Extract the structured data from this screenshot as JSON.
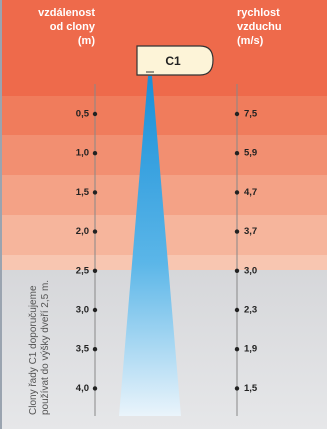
{
  "left_header": [
    "vzdálenost",
    "od clony",
    "(m)"
  ],
  "right_header": [
    "rychlost",
    "vzduchu",
    "(m/s)"
  ],
  "device": "C1",
  "rows": [
    {
      "distance": "0,5",
      "speed": "7,5"
    },
    {
      "distance": "1,0",
      "speed": "5,9"
    },
    {
      "distance": "1,5",
      "speed": "4,7"
    },
    {
      "distance": "2,0",
      "speed": "3,7"
    },
    {
      "distance": "2,5",
      "speed": "3,0"
    },
    {
      "distance": "3,0",
      "speed": "2,3"
    },
    {
      "distance": "3,5",
      "speed": "1,9"
    },
    {
      "distance": "4,0",
      "speed": "1,5"
    }
  ],
  "note": [
    "Clony řady C1 doporučujeme",
    "používat do výšky dveří 2,5 m."
  ]
}
